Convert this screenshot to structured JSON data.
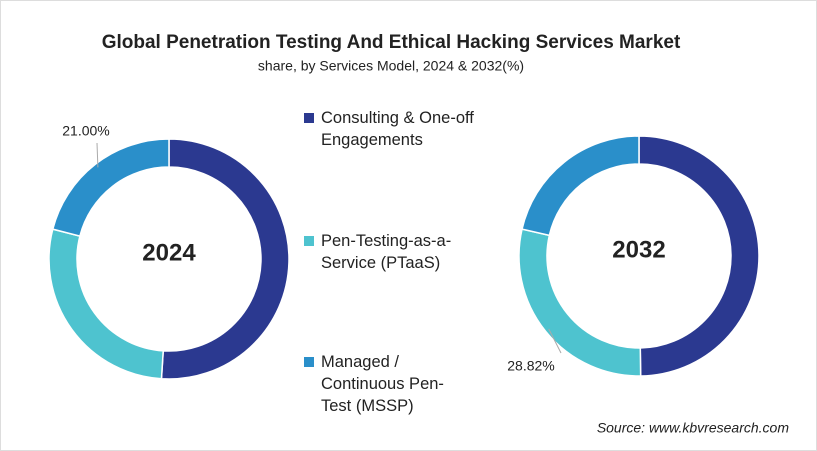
{
  "title": "Global Penetration Testing And Ethical Hacking Services Market",
  "subtitle": "share, by Services Model, 2024 & 2032(%)",
  "source": "Source: www.kbvresearch.com",
  "chart_data": [
    {
      "type": "donut",
      "title": "2024",
      "categories": [
        "Consulting & One-off Engagements",
        "Pen-Testing-as-a-Service (PTaaS)",
        "Managed / Continuous Pen-Test (MSSP)"
      ],
      "values": [
        51.0,
        28.0,
        21.0
      ],
      "value_labels": [
        null,
        null,
        "21.00%"
      ],
      "colors": [
        "#2b3990",
        "#4ec3cf",
        "#2a8fca"
      ]
    },
    {
      "type": "donut",
      "title": "2032",
      "categories": [
        "Consulting & One-off Engagements",
        "Pen-Testing-as-a-Service (PTaaS)",
        "Managed / Continuous Pen-Test (MSSP)"
      ],
      "values": [
        49.78,
        28.82,
        21.4
      ],
      "value_labels": [
        null,
        "28.82%",
        null
      ],
      "colors": [
        "#2b3990",
        "#4ec3cf",
        "#2a8fca"
      ]
    }
  ]
}
